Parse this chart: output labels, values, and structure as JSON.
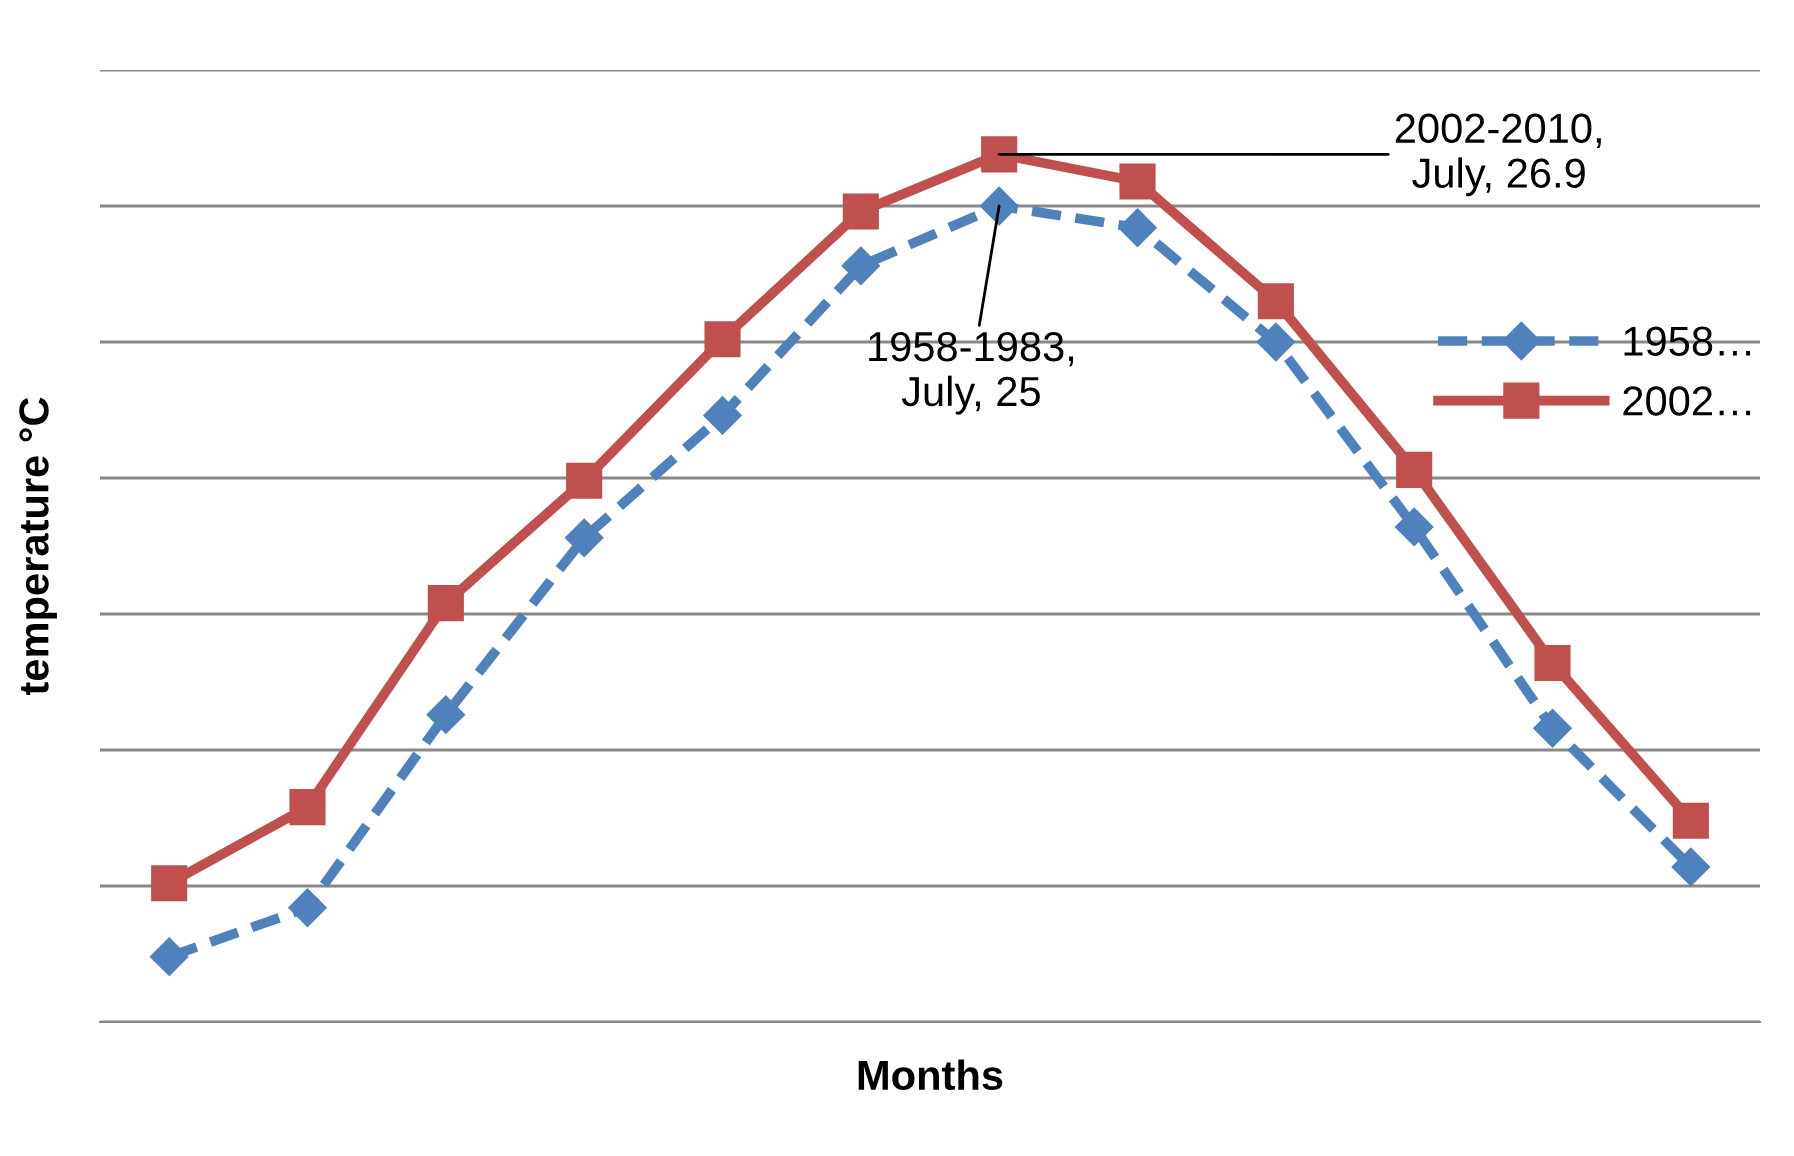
{
  "chart_data": {
    "type": "line",
    "xlabel": "Months",
    "ylabel": "temperature °C",
    "categories": [
      null,
      null,
      null,
      null,
      null,
      null,
      null,
      null,
      null,
      null,
      null,
      null
    ],
    "ylim": [
      -5,
      30
    ],
    "yticks": [
      {
        "value": -5,
        "label": null
      },
      {
        "value": 0,
        "label": null
      },
      {
        "value": 5,
        "label": null
      },
      {
        "value": 10,
        "label": null
      },
      {
        "value": 15,
        "label": null
      },
      {
        "value": 20,
        "label": null
      },
      {
        "value": 25,
        "label": null
      },
      {
        "value": 30,
        "label": null
      }
    ],
    "grid": "y",
    "legend": "right",
    "series": [
      {
        "name": "1958…",
        "color": "#4f81bd",
        "marker": "diamond",
        "line_style": "dashed",
        "values": [
          -2.6,
          -0.8,
          6.3,
          12.8,
          17.3,
          22.8,
          25,
          24.2,
          20.0,
          13.2,
          5.8,
          0.7
        ],
        "value_labels": [
          null,
          null,
          null,
          null,
          null,
          null,
          "1958-1983,\nJuly, 25",
          null,
          null,
          null,
          null,
          null
        ]
      },
      {
        "name": "2002…",
        "color": "#c0504d",
        "marker": "square",
        "line_style": "solid",
        "values": [
          0.1,
          2.9,
          10.4,
          14.9,
          20.1,
          24.8,
          26.9,
          25.9,
          21.5,
          15.3,
          8.2,
          2.4
        ],
        "value_labels": [
          null,
          null,
          null,
          null,
          null,
          null,
          "2002-2010,\nJuly, 26.9",
          null,
          null,
          null,
          null,
          null
        ]
      }
    ]
  }
}
